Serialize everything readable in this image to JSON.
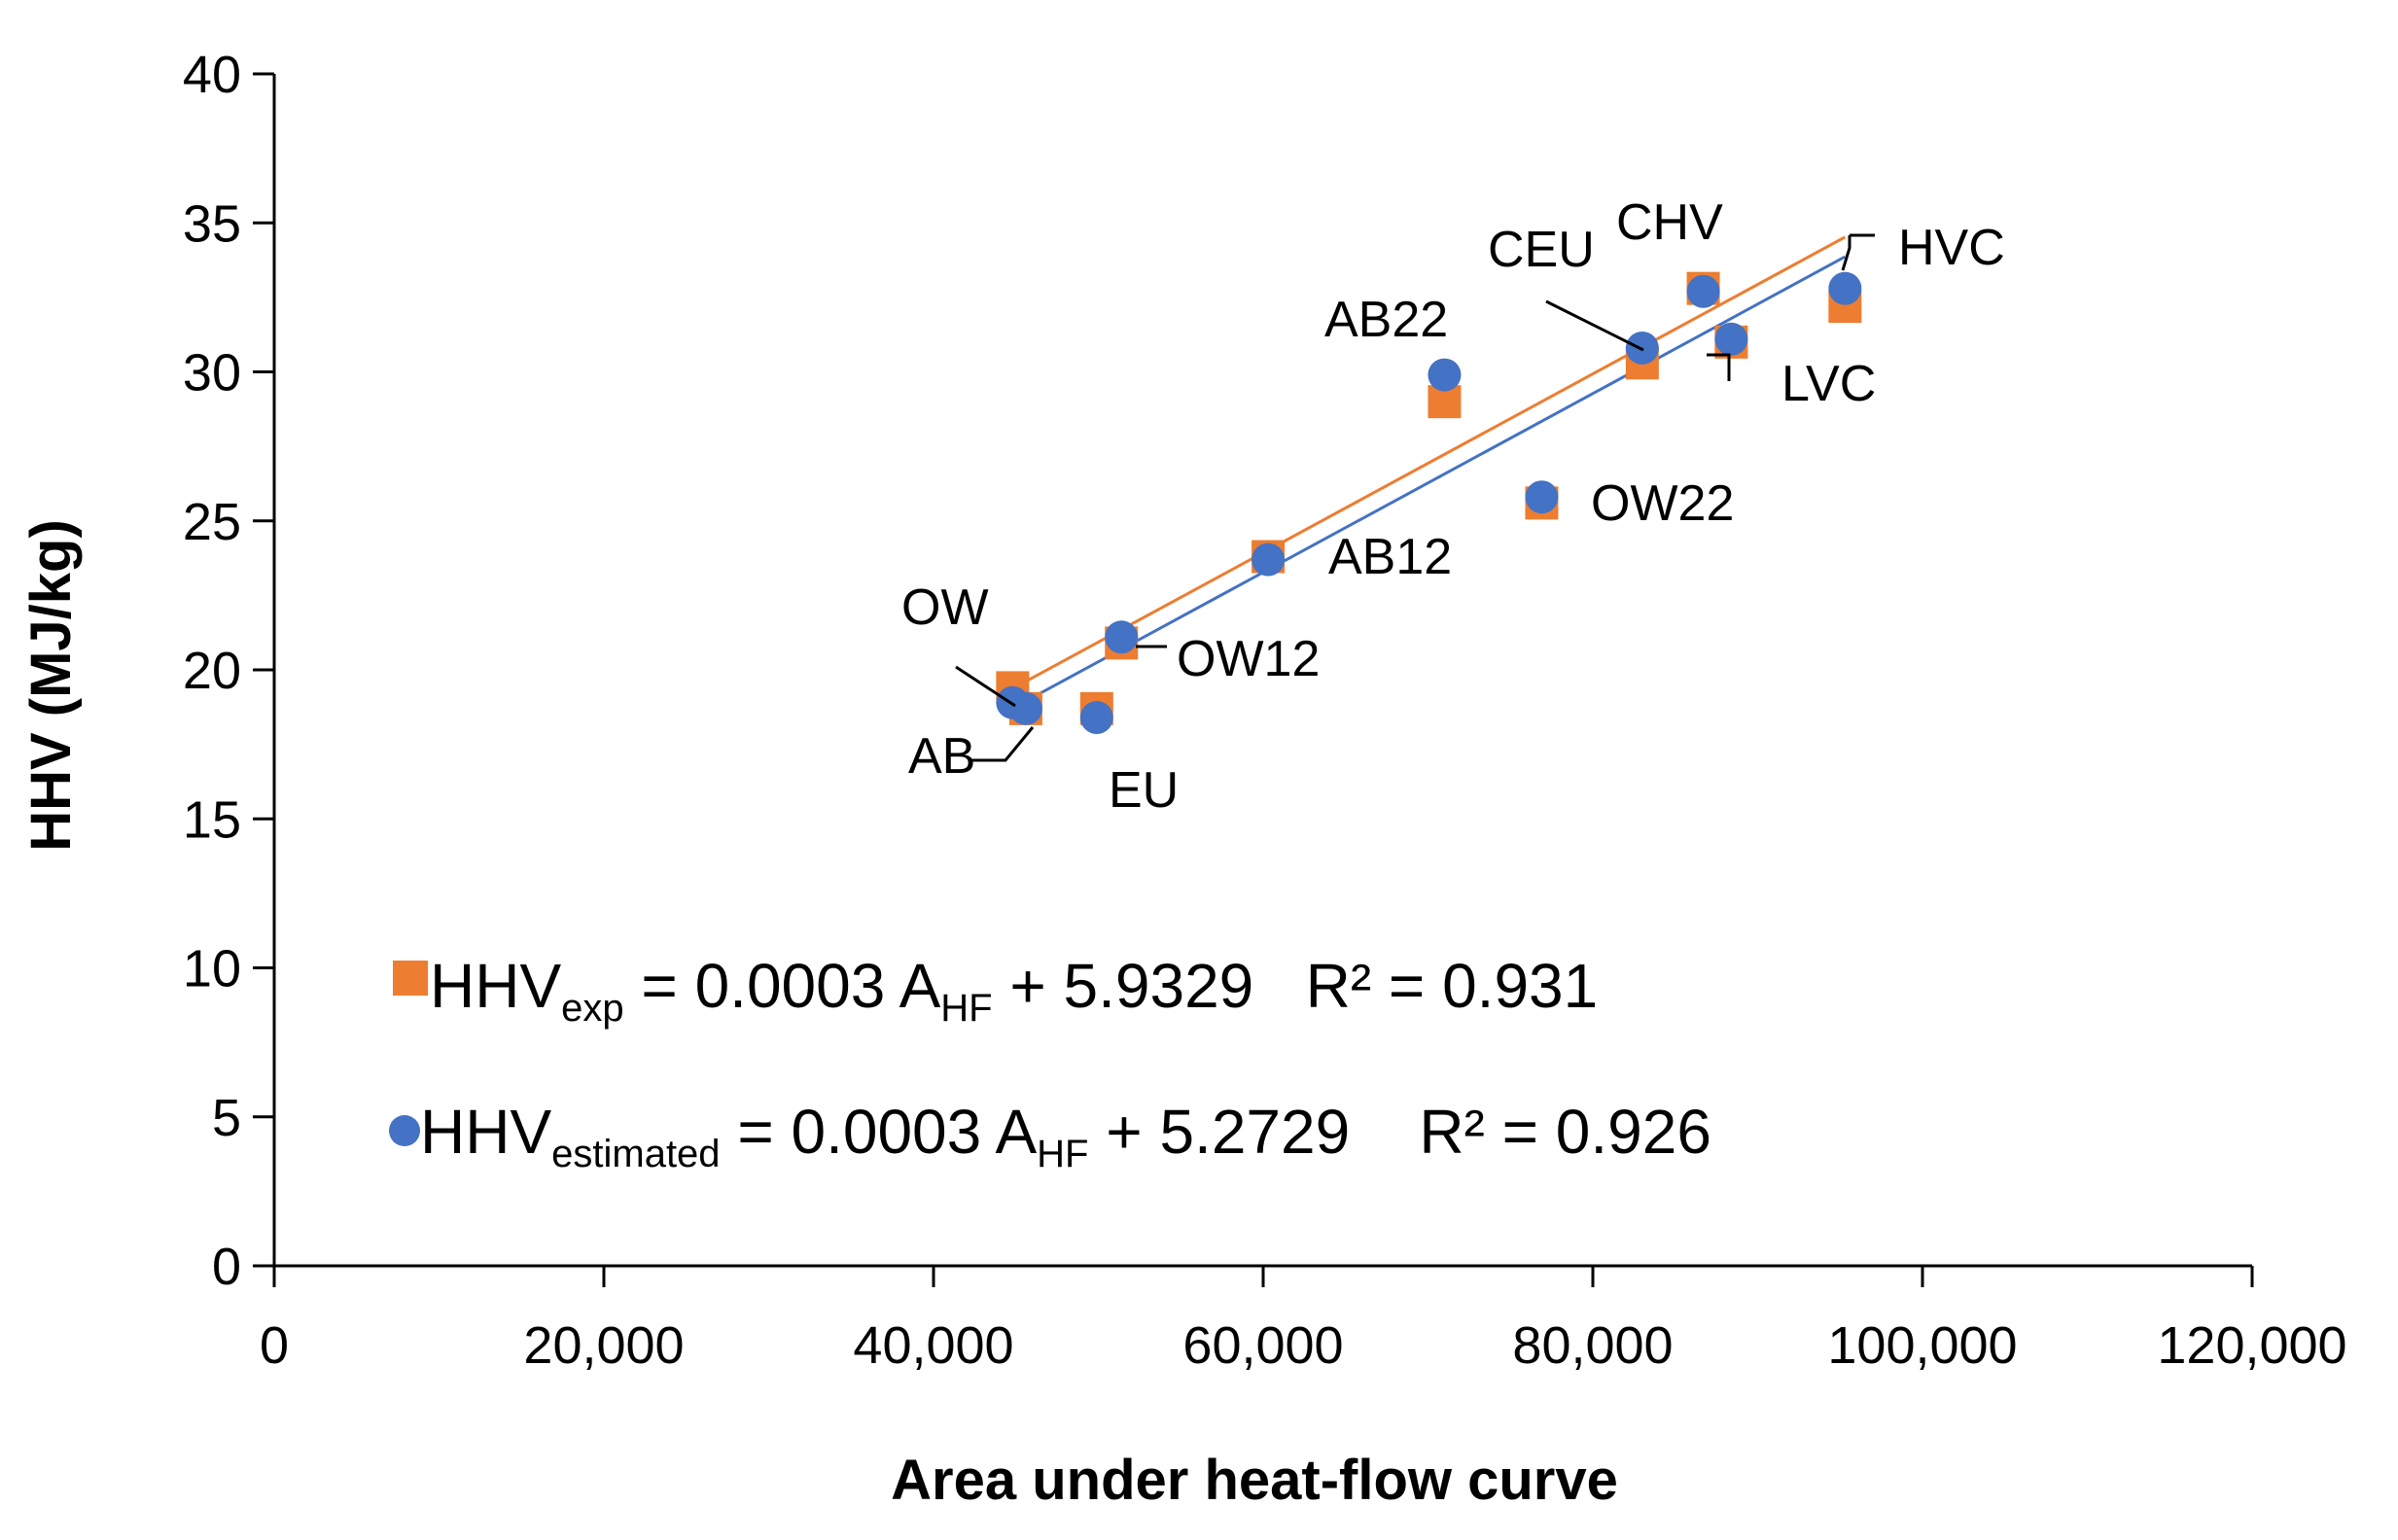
{
  "chart_data": {
    "type": "scatter",
    "xlabel": "Area under heat-flow curve",
    "ylabel": "HHV (MJ/kg)",
    "xlim": [
      0,
      120000
    ],
    "ylim": [
      0,
      40
    ],
    "x_ticks": [
      0,
      20000,
      40000,
      60000,
      80000,
      100000,
      120000
    ],
    "x_tick_labels": [
      "0",
      "20,000",
      "40,000",
      "60,000",
      "80,000",
      "100,000",
      "120,000"
    ],
    "y_ticks": [
      0,
      5,
      10,
      15,
      20,
      25,
      30,
      35,
      40
    ],
    "y_tick_labels": [
      "0",
      "5",
      "10",
      "15",
      "20",
      "25",
      "30",
      "35",
      "40"
    ],
    "grid": false,
    "series": [
      {
        "color": "#ED7D31",
        "marker": "square",
        "x": [
          44800,
          45600,
          49900,
          51400,
          60300,
          71000,
          76900,
          83000,
          86700,
          88400,
          95300
        ],
        "y": [
          19.4,
          18.7,
          18.7,
          20.9,
          23.8,
          29.0,
          25.6,
          30.3,
          32.8,
          31.0,
          32.2
        ],
        "trendline": {
          "slope": 0.0003,
          "intercept": 5.9329,
          "x_range": [
            44800,
            95300
          ],
          "color": "#ED7D31"
        }
      },
      {
        "color": "#4472C4",
        "marker": "circle",
        "x": [
          44800,
          45600,
          49900,
          51400,
          60300,
          71000,
          76900,
          83000,
          86700,
          88400,
          95300
        ],
        "y": [
          18.9,
          18.7,
          18.4,
          21.1,
          23.7,
          29.9,
          25.8,
          30.8,
          32.7,
          31.1,
          32.8
        ],
        "trendline": {
          "slope": 0.0003,
          "intercept": 5.2729,
          "x_range": [
            44800,
            95300
          ],
          "color": "#4472C4"
        }
      }
    ],
    "point_labels": [
      "OW",
      "AB",
      "EU",
      "OW12",
      "AB12",
      "AB22",
      "OW22",
      "CEU",
      "CHV",
      "LVC",
      "HVC"
    ],
    "equations": [
      {
        "main": "HHV",
        "sub1": "exp",
        "mid": " = 0.0003 A",
        "sub2": "HF",
        "tail": " + 5.9329   R² = 0.931"
      },
      {
        "main": "HHV",
        "sub1": "estimated",
        "mid": " = 0.0003 A",
        "sub2": "HF",
        "tail": " + 5.2729    R² = 0.926"
      }
    ]
  }
}
